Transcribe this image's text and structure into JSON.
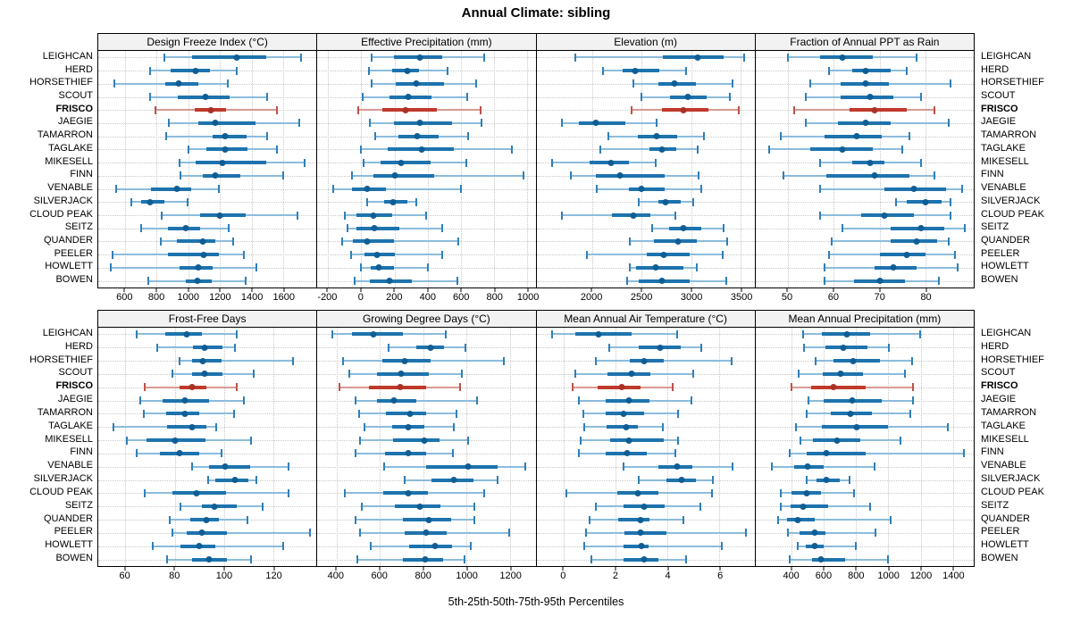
{
  "title": "Annual Climate: sibling",
  "caption": "5th-25th-50th-75th-95th Percentiles",
  "colors": {
    "blue_whisker": "#8CBCDD",
    "blue_cap": "#2F7FB8",
    "blue_box": "#1E73AE",
    "blue_dot": "#0F5D95",
    "red_whisker": "#D99A92",
    "red_cap": "#C05048",
    "red_box": "#C0392B",
    "red_dot": "#A93226",
    "grid": "#C8C8C8",
    "header_bg": "#F2F2F2"
  },
  "chart_data": {
    "type": "dotplot-trellis",
    "percentiles": [
      5,
      25,
      50,
      75,
      95
    ],
    "legend_note": "5th-25th-50th-75th-95th Percentiles",
    "highlight_category": "FRISCO",
    "layout": {
      "rows": 2,
      "cols": 4,
      "grid": "dotted",
      "site_labels": "left-and-right"
    },
    "categories": [
      "LEIGHCAN",
      "HERD",
      "HORSETHIEF",
      "SCOUT",
      "FRISCO",
      "JAEGIE",
      "TAMARRON",
      "TAGLAKE",
      "MIKESELL",
      "FINN",
      "VENABLE",
      "SILVERJACK",
      "CLOUD PEAK",
      "SEITZ",
      "QUANDER",
      "PEELER",
      "HOWLETT",
      "BOWEN"
    ],
    "panels": [
      {
        "title": "Design Freeze Index (°C)",
        "domain": [
          430,
          1810
        ],
        "ticks": [
          600,
          800,
          1000,
          1200,
          1400,
          1600
        ],
        "values": [
          [
            850,
            1025,
            1305,
            1495,
            1710
          ],
          [
            760,
            885,
            1045,
            1135,
            1305
          ],
          [
            530,
            855,
            940,
            1060,
            1250
          ],
          [
            755,
            935,
            1110,
            1260,
            1500
          ],
          [
            790,
            1040,
            1140,
            1240,
            1560
          ],
          [
            875,
            1060,
            1170,
            1425,
            1700
          ],
          [
            860,
            1155,
            1235,
            1370,
            1500
          ],
          [
            1000,
            1115,
            1230,
            1375,
            1560
          ],
          [
            945,
            1045,
            1215,
            1495,
            1735
          ],
          [
            950,
            1090,
            1170,
            1330,
            1600
          ],
          [
            545,
            765,
            925,
            1015,
            1190
          ],
          [
            640,
            700,
            755,
            850,
            995
          ],
          [
            830,
            1075,
            1200,
            1360,
            1690
          ],
          [
            700,
            870,
            985,
            1075,
            1255
          ],
          [
            825,
            925,
            1090,
            1170,
            1285
          ],
          [
            520,
            870,
            1095,
            1190,
            1350
          ],
          [
            510,
            945,
            1065,
            1155,
            1430
          ],
          [
            745,
            985,
            1055,
            1150,
            1365
          ]
        ]
      },
      {
        "title": "Effective Precipitation (mm)",
        "domain": [
          -265,
          1050
        ],
        "ticks": [
          -200,
          0,
          200,
          400,
          600,
          800,
          1000
        ],
        "values": [
          [
            60,
            195,
            355,
            490,
            740
          ],
          [
            45,
            185,
            275,
            345,
            520
          ],
          [
            60,
            205,
            330,
            500,
            690
          ],
          [
            10,
            170,
            285,
            425,
            640
          ],
          [
            -20,
            125,
            265,
            455,
            720
          ],
          [
            50,
            195,
            355,
            545,
            725
          ],
          [
            85,
            225,
            335,
            465,
            645
          ],
          [
            -5,
            160,
            365,
            560,
            905
          ],
          [
            15,
            115,
            240,
            420,
            635
          ],
          [
            -55,
            75,
            200,
            440,
            980
          ],
          [
            -170,
            -55,
            35,
            150,
            600
          ],
          [
            35,
            135,
            190,
            275,
            330
          ],
          [
            -100,
            -30,
            75,
            185,
            390
          ],
          [
            -85,
            -30,
            80,
            230,
            490
          ],
          [
            -115,
            -50,
            35,
            195,
            585
          ],
          [
            -60,
            20,
            95,
            200,
            490
          ],
          [
            0,
            55,
            105,
            195,
            400
          ],
          [
            -40,
            50,
            170,
            305,
            580
          ]
        ]
      },
      {
        "title": "Elevation (m)",
        "domain": [
          1440,
          3640
        ],
        "ticks": [
          2000,
          2500,
          3000,
          3500
        ],
        "values": [
          [
            1830,
            2715,
            3070,
            3330,
            3530
          ],
          [
            2110,
            2310,
            2435,
            2680,
            2950
          ],
          [
            2415,
            2670,
            2830,
            3050,
            3420
          ],
          [
            2495,
            2790,
            2965,
            3160,
            3390
          ],
          [
            2395,
            2710,
            2920,
            3175,
            3480
          ],
          [
            1695,
            1865,
            2040,
            2335,
            2655
          ],
          [
            2165,
            2460,
            2655,
            2860,
            3130
          ],
          [
            2080,
            2575,
            2710,
            2850,
            3070
          ],
          [
            1595,
            1980,
            2195,
            2370,
            2640
          ],
          [
            1790,
            2040,
            2280,
            2730,
            3075
          ],
          [
            2045,
            2370,
            2500,
            2730,
            3100
          ],
          [
            2475,
            2670,
            2745,
            2895,
            3025
          ],
          [
            1700,
            2200,
            2420,
            2590,
            2840
          ],
          [
            2610,
            2775,
            2925,
            3105,
            3330
          ],
          [
            2385,
            2625,
            2865,
            3060,
            3360
          ],
          [
            1950,
            2550,
            2720,
            2985,
            3320
          ],
          [
            2385,
            2445,
            2640,
            2925,
            3060
          ],
          [
            2355,
            2475,
            2710,
            2985,
            3350
          ]
        ]
      },
      {
        "title": "Fraction of Annual PPT as Rain",
        "domain": [
          43,
          90.5
        ],
        "ticks": [
          50,
          60,
          70,
          80
        ],
        "values": [
          [
            50,
            57,
            62,
            68.5,
            78
          ],
          [
            59,
            64,
            67,
            72.5,
            76
          ],
          [
            55,
            61.5,
            67,
            72,
            85.5
          ],
          [
            54,
            61.5,
            68,
            73,
            79
          ],
          [
            51.5,
            63.5,
            69,
            76,
            82
          ],
          [
            54,
            61,
            67,
            72.5,
            85
          ],
          [
            48.5,
            58,
            65,
            70.5,
            76.5
          ],
          [
            46,
            55,
            62,
            68.5,
            75
          ],
          [
            57,
            64,
            68,
            71,
            79
          ],
          [
            49,
            58.5,
            69,
            76.5,
            82
          ],
          [
            57,
            71,
            77.5,
            84.5,
            88
          ],
          [
            73.5,
            76,
            80,
            83.5,
            85.5
          ],
          [
            57,
            66,
            71,
            77.5,
            85.5
          ],
          [
            62,
            72.5,
            79,
            84,
            88.5
          ],
          [
            59.5,
            72.5,
            78,
            82.5,
            85
          ],
          [
            59,
            70,
            76,
            80,
            86.5
          ],
          [
            58,
            69,
            73,
            78,
            87
          ],
          [
            58,
            64.5,
            70,
            75.5,
            83
          ]
        ]
      },
      {
        "title": "Frost-Free Days",
        "domain": [
          49,
          137.5
        ],
        "ticks": [
          60,
          80,
          100,
          120
        ],
        "values": [
          [
            64.5,
            76,
            85,
            91,
            105
          ],
          [
            73,
            87.5,
            92,
            99.5,
            104.5
          ],
          [
            82,
            87,
            91.5,
            99,
            128
          ],
          [
            79,
            87,
            92,
            99.5,
            112
          ],
          [
            68,
            82,
            87,
            93,
            105
          ],
          [
            66,
            75,
            84,
            94,
            108
          ],
          [
            67.5,
            76.5,
            84,
            90,
            104
          ],
          [
            55,
            77,
            87,
            93,
            97
          ],
          [
            60.5,
            68.5,
            80,
            92.5,
            111
          ],
          [
            64.5,
            74,
            82,
            90,
            99
          ],
          [
            87,
            94,
            100.5,
            110.5,
            126
          ],
          [
            93.5,
            96.5,
            104.5,
            110,
            113
          ],
          [
            68,
            79,
            89,
            101,
            126
          ],
          [
            82.5,
            91,
            96,
            105,
            115.5
          ],
          [
            78,
            86.5,
            93,
            98,
            109.5
          ],
          [
            79,
            85,
            91,
            101,
            135
          ],
          [
            71,
            82.5,
            90,
            96.5,
            124
          ],
          [
            77,
            87,
            94,
            101,
            111
          ]
        ]
      },
      {
        "title": "Growing Degree Days (°C)",
        "domain": [
          312,
          1318
        ],
        "ticks": [
          400,
          600,
          800,
          1000,
          1200
        ],
        "values": [
          [
            380,
            470,
            570,
            705,
            905
          ],
          [
            640,
            770,
            835,
            895,
            995
          ],
          [
            430,
            610,
            715,
            835,
            1170
          ],
          [
            460,
            585,
            700,
            825,
            980
          ],
          [
            415,
            550,
            695,
            815,
            970
          ],
          [
            490,
            585,
            665,
            770,
            1050
          ],
          [
            505,
            630,
            740,
            815,
            955
          ],
          [
            530,
            655,
            730,
            805,
            940
          ],
          [
            510,
            660,
            805,
            875,
            1005
          ],
          [
            490,
            625,
            730,
            815,
            935
          ],
          [
            620,
            815,
            1005,
            1145,
            1270
          ],
          [
            715,
            840,
            940,
            1030,
            1145
          ],
          [
            440,
            615,
            730,
            820,
            1080
          ],
          [
            515,
            670,
            785,
            880,
            1035
          ],
          [
            490,
            705,
            825,
            930,
            1035
          ],
          [
            510,
            715,
            815,
            910,
            1195
          ],
          [
            560,
            735,
            855,
            935,
            1020
          ],
          [
            495,
            705,
            810,
            890,
            990
          ]
        ]
      },
      {
        "title": "Mean Annual Air Temperature (°C)",
        "domain": [
          -1.05,
          7.35
        ],
        "ticks": [
          0,
          2,
          4,
          6
        ],
        "values": [
          [
            -0.45,
            0.45,
            1.35,
            2.6,
            4.35
          ],
          [
            1.75,
            2.9,
            3.7,
            4.5,
            5.3
          ],
          [
            1.25,
            2.55,
            3.1,
            3.85,
            6.45
          ],
          [
            0.45,
            1.7,
            2.6,
            3.35,
            5.0
          ],
          [
            0.35,
            1.3,
            2.25,
            2.95,
            4.2
          ],
          [
            0.6,
            1.6,
            2.5,
            3.3,
            4.9
          ],
          [
            0.75,
            1.6,
            2.3,
            3.1,
            4.4
          ],
          [
            0.8,
            1.65,
            2.4,
            2.85,
            3.8
          ],
          [
            0.65,
            1.8,
            2.5,
            3.85,
            4.4
          ],
          [
            0.6,
            1.6,
            2.45,
            3.2,
            4.3
          ],
          [
            2.3,
            3.65,
            4.35,
            4.95,
            6.5
          ],
          [
            2.9,
            3.95,
            4.55,
            5.1,
            5.75
          ],
          [
            0.1,
            2.05,
            2.85,
            3.65,
            5.7
          ],
          [
            1.25,
            2.3,
            3.1,
            3.9,
            5.25
          ],
          [
            1.0,
            2.1,
            2.95,
            3.3,
            4.6
          ],
          [
            0.85,
            2.35,
            2.95,
            3.95,
            7.0
          ],
          [
            0.8,
            2.3,
            3.0,
            3.25,
            6.1
          ],
          [
            1.05,
            2.3,
            3.1,
            3.65,
            4.7
          ]
        ]
      },
      {
        "title": "Mean Annual Precipitation (mm)",
        "domain": [
          175,
          1530
        ],
        "ticks": [
          400,
          600,
          800,
          1000,
          1200,
          1400
        ],
        "values": [
          [
            470,
            585,
            740,
            885,
            1195
          ],
          [
            475,
            610,
            720,
            870,
            1005
          ],
          [
            550,
            660,
            780,
            945,
            1145
          ],
          [
            440,
            590,
            705,
            840,
            1105
          ],
          [
            400,
            520,
            660,
            860,
            1155
          ],
          [
            505,
            600,
            775,
            960,
            1150
          ],
          [
            495,
            645,
            765,
            900,
            1135
          ],
          [
            425,
            585,
            805,
            995,
            1370
          ],
          [
            455,
            530,
            680,
            825,
            1075
          ],
          [
            385,
            490,
            615,
            860,
            1470
          ],
          [
            275,
            415,
            500,
            600,
            915
          ],
          [
            495,
            555,
            615,
            700,
            760
          ],
          [
            330,
            400,
            495,
            580,
            785
          ],
          [
            330,
            390,
            470,
            625,
            885
          ],
          [
            315,
            370,
            435,
            545,
            1015
          ],
          [
            375,
            450,
            545,
            610,
            920
          ],
          [
            435,
            485,
            540,
            600,
            795
          ],
          [
            385,
            525,
            580,
            730,
            995
          ]
        ]
      }
    ]
  }
}
